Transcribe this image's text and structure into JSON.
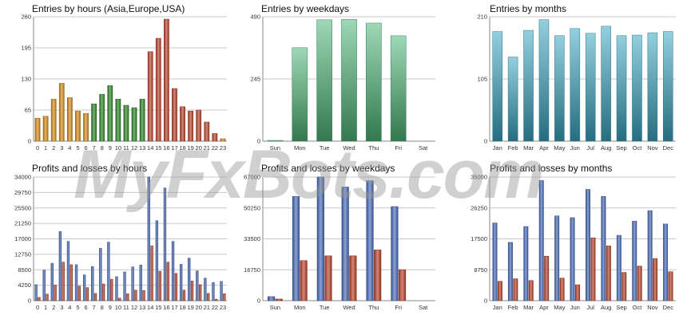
{
  "watermark": "MyFxBots.com",
  "colors": {
    "hours_orange": "#d8901e",
    "hours_green": "#2f8a2a",
    "hours_red": "#c0452c",
    "weekday_green": "#4fb87a",
    "month_teal": "#3aa8c4",
    "profit_blue": "#4a6fbf",
    "loss_red": "#c0452c"
  },
  "chart_data": [
    {
      "type": "bar",
      "title": "Entries by hours (Asia,Europe,USA)",
      "categories": [
        "0",
        "1",
        "2",
        "3",
        "4",
        "5",
        "6",
        "7",
        "8",
        "9",
        "10",
        "11",
        "12",
        "13",
        "14",
        "15",
        "16",
        "17",
        "18",
        "19",
        "20",
        "21",
        "22",
        "23"
      ],
      "values": [
        48,
        52,
        88,
        121,
        91,
        63,
        58,
        78,
        98,
        116,
        88,
        75,
        70,
        88,
        187,
        215,
        255,
        110,
        72,
        63,
        65,
        40,
        16,
        5
      ],
      "bar_colors": [
        "hours_orange",
        "hours_orange",
        "hours_orange",
        "hours_orange",
        "hours_orange",
        "hours_orange",
        "hours_orange",
        "hours_green",
        "hours_green",
        "hours_green",
        "hours_green",
        "hours_green",
        "hours_green",
        "hours_green",
        "hours_red",
        "hours_red",
        "hours_red",
        "hours_red",
        "hours_red",
        "hours_red",
        "hours_red",
        "hours_red",
        "hours_red",
        "hours_orange"
      ],
      "yticks": [
        0,
        65,
        130,
        195,
        260
      ],
      "ylim": [
        0,
        260
      ]
    },
    {
      "type": "bar",
      "title": "Entries by weekdays",
      "categories": [
        "Sun",
        "Mon",
        "Tue",
        "Wed",
        "Thu",
        "Fri",
        "Sat"
      ],
      "values": [
        3,
        368,
        478,
        480,
        465,
        415,
        0
      ],
      "bar_colors": [
        "weekday_green",
        "weekday_green",
        "weekday_green",
        "weekday_green",
        "weekday_green",
        "weekday_green",
        "weekday_green"
      ],
      "yticks": [
        0,
        245,
        490
      ],
      "ylim": [
        0,
        490
      ]
    },
    {
      "type": "bar",
      "title": "Entries by months",
      "categories": [
        "Jan",
        "Feb",
        "Mar",
        "Apr",
        "May",
        "Jun",
        "Jul",
        "Aug",
        "Sep",
        "Oct",
        "Nov",
        "Dec"
      ],
      "values": [
        185,
        142,
        187,
        205,
        178,
        190,
        182,
        194,
        178,
        179,
        183,
        185
      ],
      "bar_colors": [
        "month_teal",
        "month_teal",
        "month_teal",
        "month_teal",
        "month_teal",
        "month_teal",
        "month_teal",
        "month_teal",
        "month_teal",
        "month_teal",
        "month_teal",
        "month_teal"
      ],
      "yticks": [
        0,
        105,
        210
      ],
      "ylim": [
        0,
        210
      ]
    },
    {
      "type": "bar",
      "title": "Profits and losses by hours",
      "categories": [
        "0",
        "1",
        "2",
        "3",
        "4",
        "5",
        "6",
        "7",
        "8",
        "9",
        "10",
        "11",
        "12",
        "13",
        "14",
        "15",
        "16",
        "17",
        "18",
        "19",
        "20",
        "21",
        "22",
        "23"
      ],
      "series": [
        {
          "color": "profit_blue",
          "values": [
            4400,
            8400,
            10300,
            19000,
            16300,
            9900,
            7100,
            9400,
            14400,
            16100,
            6600,
            7900,
            9300,
            9800,
            34000,
            22000,
            31000,
            16300,
            10000,
            11700,
            8200,
            6200,
            5000,
            5300
          ]
        },
        {
          "color": "loss_red",
          "values": [
            900,
            1800,
            4300,
            10600,
            9900,
            4000,
            3600,
            2000,
            4600,
            5900,
            700,
            1900,
            2900,
            2800,
            15100,
            8100,
            10600,
            7500,
            2900,
            5400,
            4400,
            2000,
            400,
            1900
          ]
        }
      ],
      "yticks": [
        0,
        4250,
        8500,
        12750,
        17000,
        21250,
        25500,
        29750,
        34000
      ],
      "ylim": [
        0,
        34000
      ]
    },
    {
      "type": "bar",
      "title": "Profits and losses by weekdays",
      "categories": [
        "Sun",
        "Mon",
        "Tue",
        "Wed",
        "Thu",
        "Fri",
        "Sat"
      ],
      "series": [
        {
          "color": "profit_blue",
          "values": [
            2200,
            56500,
            67000,
            61600,
            65000,
            51000,
            0
          ]
        },
        {
          "color": "loss_red",
          "values": [
            900,
            21700,
            24300,
            24300,
            27500,
            16800,
            0
          ]
        }
      ],
      "yticks": [
        0,
        16750,
        33500,
        50250,
        67000
      ],
      "ylim": [
        0,
        67000
      ]
    },
    {
      "type": "bar",
      "title": "Profits and losses by months",
      "categories": [
        "Jan",
        "Feb",
        "Mar",
        "Apr",
        "May",
        "Jun",
        "Jul",
        "Aug",
        "Sep",
        "Oct",
        "Nov",
        "Dec"
      ],
      "series": [
        {
          "color": "profit_blue",
          "values": [
            22000,
            16500,
            21000,
            34000,
            24000,
            23500,
            31500,
            29500,
            18500,
            22500,
            25500,
            21700
          ]
        },
        {
          "color": "loss_red",
          "values": [
            5500,
            6200,
            5700,
            12600,
            6400,
            4500,
            17800,
            15500,
            8000,
            9800,
            11900,
            8200
          ]
        }
      ],
      "yticks": [
        0,
        8750,
        17500,
        26250,
        35000
      ],
      "ylim": [
        0,
        35000
      ]
    }
  ]
}
